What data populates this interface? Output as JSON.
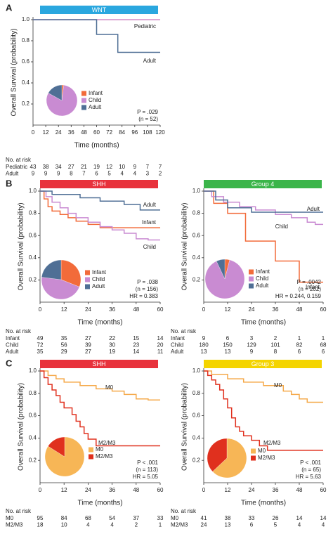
{
  "panels_note_free": null,
  "chart_data": [
    {
      "type": "line",
      "panel": "A",
      "title": "WNT",
      "title_color": "#2aa7df",
      "x_label": "Time (months)",
      "y_label": "Overall Survival (probability)",
      "xlim": [
        0,
        120
      ],
      "xticks": [
        0,
        12,
        24,
        36,
        48,
        60,
        72,
        84,
        96,
        108,
        120
      ],
      "ylim": [
        0,
        1
      ],
      "yticks": [
        0.2,
        0.4,
        0.6,
        0.8,
        {
          "value": 1,
          "label": "1.0"
        }
      ],
      "series": [
        {
          "name": "Pediatric",
          "color": "#d48cc6",
          "x": [
            0,
            120
          ],
          "values": [
            1,
            1
          ]
        },
        {
          "name": "Adult",
          "color": "#4f6f95",
          "x": [
            0,
            60,
            60,
            80,
            80,
            120
          ],
          "values": [
            1,
            1,
            0.86,
            0.86,
            0.69,
            0.69
          ]
        }
      ],
      "pie": {
        "labels": [
          "Infant",
          "Child",
          "Adult"
        ],
        "colors": [
          "#f26b3a",
          "#c98bd2",
          "#4f6f95"
        ],
        "values": [
          2,
          81,
          17
        ]
      },
      "annotations": [
        "P = .029",
        "(n = 52)"
      ],
      "risk_table": {
        "title": "No. at risk",
        "rows": [
          {
            "name": "Pediatric",
            "values": [
              43,
              38,
              34,
              27,
              21,
              19,
              12,
              10,
              9,
              7,
              7
            ]
          },
          {
            "name": "Adult",
            "values": [
              9,
              9,
              9,
              8,
              7,
              6,
              5,
              4,
              4,
              3,
              2
            ]
          }
        ]
      }
    },
    {
      "type": "line",
      "panel": "B",
      "title": "SHH",
      "title_color": "#e8323c",
      "x_label": "Time (months)",
      "y_label": "Overall Survival (probability)",
      "xlim": [
        0,
        60
      ],
      "xticks": [
        0,
        12,
        24,
        36,
        48,
        60
      ],
      "ylim": [
        0,
        1
      ],
      "yticks": [
        0.2,
        0.4,
        0.6,
        0.8,
        {
          "value": 1,
          "label": "1.0"
        }
      ],
      "series": [
        {
          "name": "Infant",
          "color": "#f26b3a",
          "x": [
            0,
            2,
            2,
            4,
            4,
            6,
            6,
            10,
            10,
            14,
            14,
            18,
            18,
            24,
            24,
            30,
            30,
            60
          ],
          "values": [
            1,
            1,
            0.93,
            0.93,
            0.86,
            0.86,
            0.82,
            0.82,
            0.79,
            0.79,
            0.76,
            0.76,
            0.73,
            0.73,
            0.7,
            0.7,
            0.67,
            0.67
          ]
        },
        {
          "name": "Child",
          "color": "#c98bd2",
          "x": [
            0,
            3,
            3,
            6,
            6,
            10,
            10,
            14,
            14,
            18,
            18,
            24,
            24,
            30,
            30,
            36,
            36,
            42,
            42,
            48,
            48,
            54,
            54,
            60
          ],
          "values": [
            1,
            1,
            0.95,
            0.95,
            0.9,
            0.9,
            0.85,
            0.85,
            0.8,
            0.8,
            0.76,
            0.76,
            0.72,
            0.72,
            0.68,
            0.68,
            0.65,
            0.65,
            0.62,
            0.62,
            0.57,
            0.57,
            0.56,
            0.56
          ]
        },
        {
          "name": "Adult",
          "color": "#4f6f95",
          "x": [
            0,
            6,
            6,
            20,
            20,
            30,
            30,
            42,
            42,
            50,
            50,
            60
          ],
          "values": [
            1,
            1,
            0.97,
            0.97,
            0.94,
            0.94,
            0.91,
            0.91,
            0.88,
            0.88,
            0.83,
            0.83
          ]
        }
      ],
      "pie": {
        "labels": [
          "Infant",
          "Child",
          "Adult"
        ],
        "colors": [
          "#f26b3a",
          "#c98bd2",
          "#4f6f95"
        ],
        "values": [
          31,
          46,
          23
        ]
      },
      "annotations": [
        "P = .038",
        "(n = 156)",
        "HR = 0.383"
      ],
      "risk_table": {
        "title": "No. at risk",
        "rows": [
          {
            "name": "Infant",
            "values": [
              49,
              35,
              27,
              22,
              15,
              14
            ]
          },
          {
            "name": "Child",
            "values": [
              72,
              56,
              39,
              30,
              23,
              20
            ]
          },
          {
            "name": "Adult",
            "values": [
              35,
              29,
              27,
              19,
              14,
              11
            ]
          }
        ]
      }
    },
    {
      "type": "line",
      "title": "Group 4",
      "title_color": "#3bb54a",
      "x_label": "Time (months)",
      "y_label": "Overall Survival (probability)",
      "xlim": [
        0,
        60
      ],
      "xticks": [
        0,
        12,
        24,
        36,
        48,
        60
      ],
      "ylim": [
        0,
        1
      ],
      "yticks": [
        0.2,
        0.4,
        0.6,
        0.8,
        {
          "value": 1,
          "label": "1.0"
        }
      ],
      "series": [
        {
          "name": "Infant",
          "color": "#f26b3a",
          "x": [
            0,
            5,
            5,
            12,
            12,
            21,
            21,
            36,
            36,
            48,
            48,
            60
          ],
          "values": [
            1,
            1,
            0.89,
            0.89,
            0.8,
            0.8,
            0.55,
            0.55,
            0.37,
            0.37,
            0.18,
            0.18
          ]
        },
        {
          "name": "Child",
          "color": "#c98bd2",
          "x": [
            0,
            4,
            4,
            10,
            10,
            18,
            18,
            26,
            26,
            36,
            36,
            44,
            44,
            52,
            52,
            56,
            56,
            60
          ],
          "values": [
            1,
            1,
            0.95,
            0.95,
            0.9,
            0.9,
            0.86,
            0.86,
            0.83,
            0.83,
            0.79,
            0.79,
            0.76,
            0.76,
            0.72,
            0.72,
            0.7,
            0.7
          ]
        },
        {
          "name": "Adult",
          "color": "#4f6f95",
          "x": [
            0,
            6,
            6,
            12,
            12,
            24,
            24,
            60
          ],
          "values": [
            1,
            1,
            0.92,
            0.92,
            0.85,
            0.85,
            0.81,
            0.81
          ]
        }
      ],
      "pie": {
        "labels": [
          "Infant",
          "Child",
          "Adult"
        ],
        "colors": [
          "#f26b3a",
          "#c98bd2",
          "#4f6f95"
        ],
        "values": [
          4,
          89,
          7
        ]
      },
      "annotations": [
        "P = .0042",
        "(n = 202)",
        "HR = 0.244, 0.159"
      ],
      "risk_table": {
        "title": "No. at risk",
        "rows": [
          {
            "name": "Infant",
            "values": [
              9,
              6,
              3,
              2,
              1,
              1
            ]
          },
          {
            "name": "Child",
            "values": [
              180,
              150,
              129,
              101,
              82,
              68
            ]
          },
          {
            "name": "Adult",
            "values": [
              13,
              13,
              9,
              8,
              6,
              6
            ]
          }
        ]
      }
    },
    {
      "type": "line",
      "panel": "C",
      "title": "SHH",
      "title_color": "#e8323c",
      "x_label": "Time (months)",
      "y_label": "Overall Survival (probability)",
      "xlim": [
        0,
        60
      ],
      "xticks": [
        0,
        12,
        24,
        36,
        48,
        60
      ],
      "ylim": [
        0,
        1
      ],
      "yticks": [
        0.2,
        0.4,
        0.6,
        0.8,
        {
          "value": 1,
          "label": "1.0"
        }
      ],
      "series": [
        {
          "name": "M0",
          "color": "#f5a94a",
          "x": [
            0,
            4,
            4,
            8,
            8,
            12,
            12,
            20,
            20,
            28,
            28,
            36,
            36,
            42,
            42,
            48,
            48,
            54,
            54,
            60
          ],
          "values": [
            1,
            1,
            0.96,
            0.96,
            0.93,
            0.93,
            0.9,
            0.9,
            0.87,
            0.87,
            0.84,
            0.84,
            0.82,
            0.82,
            0.79,
            0.79,
            0.75,
            0.75,
            0.74,
            0.74
          ]
        },
        {
          "name": "M2/M3",
          "color": "#e0301e",
          "x": [
            0,
            2,
            2,
            4,
            4,
            6,
            6,
            8,
            8,
            10,
            10,
            12,
            12,
            16,
            16,
            18,
            18,
            20,
            20,
            22,
            22,
            24,
            24,
            28,
            28,
            60
          ],
          "values": [
            1,
            1,
            0.94,
            0.94,
            0.88,
            0.88,
            0.83,
            0.83,
            0.78,
            0.78,
            0.72,
            0.72,
            0.67,
            0.67,
            0.61,
            0.61,
            0.55,
            0.55,
            0.5,
            0.5,
            0.44,
            0.44,
            0.39,
            0.39,
            0.33,
            0.33
          ]
        }
      ],
      "pie": {
        "labels": [
          "M0",
          "M2/M3"
        ],
        "colors": [
          "#f7b656",
          "#e0301e"
        ],
        "values": [
          84,
          16
        ]
      },
      "annotations": [
        "P < .001",
        "(n = 113)",
        "HR = 5.05"
      ],
      "risk_table": {
        "title": "No. at risk",
        "rows": [
          {
            "name": "M0",
            "values": [
              95,
              84,
              68,
              54,
              37,
              33
            ]
          },
          {
            "name": "M2/M3",
            "values": [
              18,
              10,
              4,
              4,
              2,
              1
            ]
          }
        ]
      }
    },
    {
      "type": "line",
      "title": "Group 3",
      "title_color": "#f4d400",
      "x_label": "Time (months)",
      "y_label": "Overall Survival (probability)",
      "xlim": [
        0,
        60
      ],
      "xticks": [
        0,
        12,
        24,
        36,
        48,
        60
      ],
      "ylim": [
        0,
        1
      ],
      "yticks": [
        0.2,
        0.4,
        0.6,
        0.8,
        {
          "value": 1,
          "label": "1.0"
        }
      ],
      "series": [
        {
          "name": "M0",
          "color": "#f5a94a",
          "x": [
            0,
            4,
            4,
            12,
            12,
            20,
            20,
            30,
            30,
            40,
            40,
            44,
            44,
            48,
            48,
            52,
            52,
            60
          ],
          "values": [
            1,
            1,
            0.97,
            0.97,
            0.93,
            0.93,
            0.9,
            0.9,
            0.87,
            0.87,
            0.82,
            0.82,
            0.79,
            0.79,
            0.75,
            0.75,
            0.72,
            0.72
          ]
        },
        {
          "name": "M2/M3",
          "color": "#e0301e",
          "x": [
            0,
            2,
            2,
            4,
            4,
            6,
            6,
            8,
            8,
            10,
            10,
            12,
            12,
            14,
            14,
            16,
            16,
            18,
            18,
            20,
            20,
            24,
            24,
            28,
            28,
            32,
            32,
            60
          ],
          "values": [
            1,
            1,
            0.96,
            0.96,
            0.92,
            0.92,
            0.88,
            0.88,
            0.83,
            0.83,
            0.75,
            0.75,
            0.67,
            0.67,
            0.58,
            0.58,
            0.5,
            0.5,
            0.46,
            0.46,
            0.42,
            0.42,
            0.38,
            0.38,
            0.33,
            0.33,
            0.29,
            0.29
          ]
        }
      ],
      "pie": {
        "labels": [
          "M0",
          "M2/M3"
        ],
        "colors": [
          "#f7b656",
          "#e0301e"
        ],
        "values": [
          63,
          37
        ]
      },
      "annotations": [
        "P < .001",
        "(n = 65)",
        "HR = 5.63"
      ],
      "risk_table": {
        "title": "No. at risk",
        "rows": [
          {
            "name": "M0",
            "values": [
              41,
              38,
              33,
              26,
              14,
              14
            ]
          },
          {
            "name": "M2/M3",
            "values": [
              24,
              13,
              6,
              5,
              4,
              4
            ]
          }
        ]
      }
    }
  ]
}
